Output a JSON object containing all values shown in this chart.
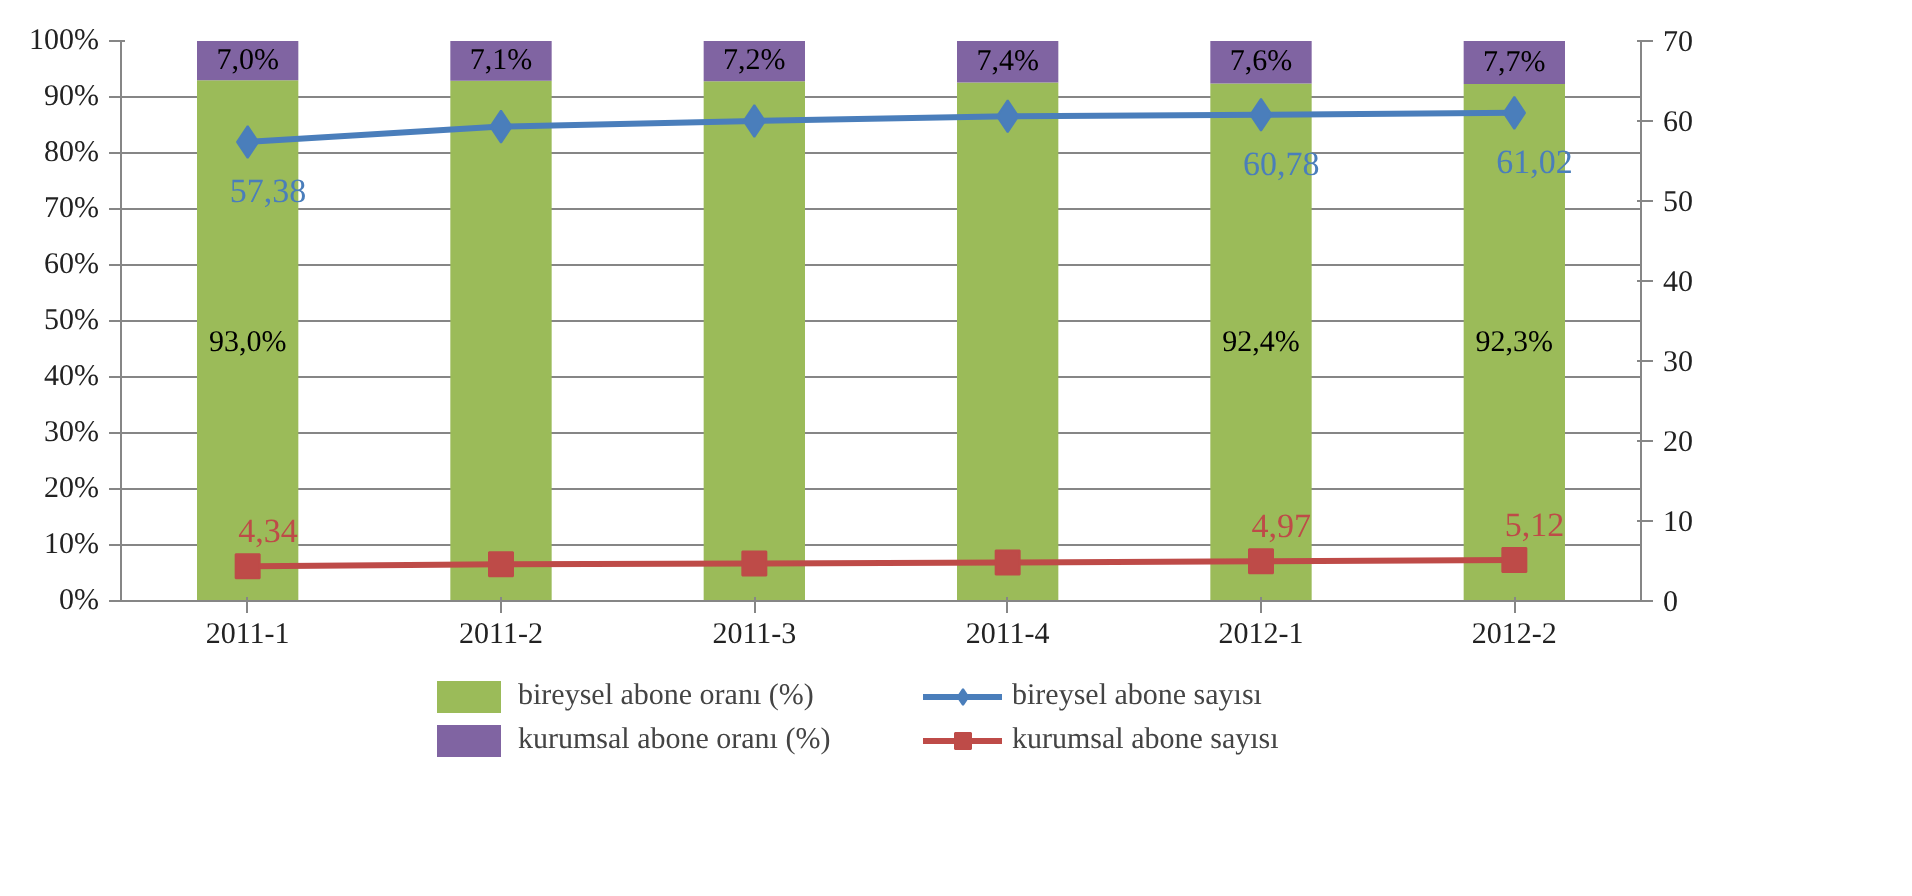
{
  "chart_data": {
    "type": "bar",
    "stacked": true,
    "categories": [
      "2011-1",
      "2011-2",
      "2011-3",
      "2011-4",
      "2012-1",
      "2012-2"
    ],
    "series": [
      {
        "name": "bireysel abone oranı (%)",
        "color": "#9bbb59",
        "values": [
          93.0,
          92.9,
          92.8,
          92.6,
          92.4,
          92.3
        ],
        "value_labels": [
          "93,0%",
          null,
          null,
          null,
          "92,4%",
          "92,3%"
        ]
      },
      {
        "name": "kurumsal abone oranı (%)",
        "color": "#8064a2",
        "values": [
          7.0,
          7.1,
          7.2,
          7.4,
          7.6,
          7.7
        ],
        "value_labels": [
          "7,0%",
          "7,1%",
          "7,2%",
          "7,4%",
          "7,6%",
          "7,7%"
        ]
      },
      {
        "name": "bireysel abone sayısı",
        "type": "line",
        "axis": "y2",
        "marker": "diamond",
        "color": "#4a7ebb",
        "values": [
          57.38,
          59.3,
          60.0,
          60.6,
          60.78,
          61.02
        ],
        "value_labels": [
          "57,38",
          null,
          null,
          null,
          "60,78",
          "61,02"
        ]
      },
      {
        "name": "kurumsal abone sayısı",
        "type": "line",
        "axis": "y2",
        "marker": "square",
        "color": "#be4b48",
        "values": [
          4.34,
          4.6,
          4.7,
          4.8,
          4.97,
          5.12
        ],
        "value_labels": [
          "4,34",
          null,
          null,
          null,
          "4,97",
          "5,12"
        ]
      }
    ],
    "ylim": [
      0,
      100
    ],
    "yticks": [
      {
        "value": 0,
        "label": "0%"
      },
      {
        "value": 10,
        "label": "10%"
      },
      {
        "value": 20,
        "label": "20%"
      },
      {
        "value": 30,
        "label": "30%"
      },
      {
        "value": 40,
        "label": "40%"
      },
      {
        "value": 50,
        "label": "50%"
      },
      {
        "value": 60,
        "label": "60%"
      },
      {
        "value": 70,
        "label": "70%"
      },
      {
        "value": 80,
        "label": "80%"
      },
      {
        "value": 90,
        "label": "90%"
      },
      {
        "value": 100,
        "label": "100%"
      }
    ],
    "y2lim": [
      0,
      70
    ],
    "y2ticks": [
      0,
      10,
      20,
      30,
      40,
      50,
      60,
      70
    ],
    "grid": "y",
    "legend": "bottom",
    "line_style": "solid"
  }
}
